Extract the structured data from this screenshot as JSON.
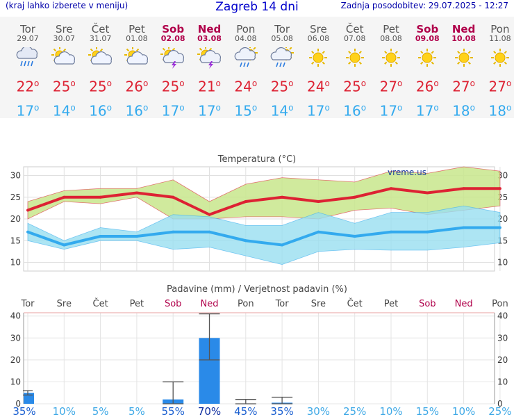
{
  "header": {
    "left_note": "(kraj lahko izberete v meniju)",
    "title": "Zagreb 14 dni",
    "updated": "Zadnja posodobitev: 29.07.2025 - 12:27"
  },
  "days": [
    {
      "name": "Tor",
      "date": "29.07",
      "weekend": false,
      "icon": "rain-cloud-icon",
      "tmax": "22",
      "tmin": "17"
    },
    {
      "name": "Sre",
      "date": "30.07",
      "weekend": false,
      "icon": "sun-cloud-icon",
      "tmax": "25",
      "tmin": "14"
    },
    {
      "name": "Čet",
      "date": "31.07",
      "weekend": false,
      "icon": "sun-cloud-icon",
      "tmax": "25",
      "tmin": "16"
    },
    {
      "name": "Pet",
      "date": "01.08",
      "weekend": false,
      "icon": "sun-cloud-icon",
      "tmax": "26",
      "tmin": "16"
    },
    {
      "name": "Sob",
      "date": "02.08",
      "weekend": true,
      "icon": "thunder-sun-icon",
      "tmax": "25",
      "tmin": "17"
    },
    {
      "name": "Ned",
      "date": "03.08",
      "weekend": true,
      "icon": "thunder-sun-icon",
      "tmax": "21",
      "tmin": "17"
    },
    {
      "name": "Pon",
      "date": "04.08",
      "weekend": false,
      "icon": "sun-rain-icon",
      "tmax": "24",
      "tmin": "15"
    },
    {
      "name": "Tor",
      "date": "05.08",
      "weekend": false,
      "icon": "sun-rain-icon",
      "tmax": "25",
      "tmin": "14"
    },
    {
      "name": "Sre",
      "date": "06.08",
      "weekend": false,
      "icon": "sun-icon",
      "tmax": "24",
      "tmin": "17"
    },
    {
      "name": "Čet",
      "date": "07.08",
      "weekend": false,
      "icon": "sun-icon",
      "tmax": "25",
      "tmin": "16"
    },
    {
      "name": "Pet",
      "date": "08.08",
      "weekend": false,
      "icon": "sun-icon",
      "tmax": "27",
      "tmin": "17"
    },
    {
      "name": "Sob",
      "date": "09.08",
      "weekend": true,
      "icon": "sun-icon",
      "tmax": "26",
      "tmin": "17"
    },
    {
      "name": "Ned",
      "date": "10.08",
      "weekend": true,
      "icon": "sun-icon",
      "tmax": "27",
      "tmin": "18"
    },
    {
      "name": "Pon",
      "date": "11.08",
      "weekend": false,
      "icon": "sun-icon",
      "tmax": "27",
      "tmin": "18"
    }
  ],
  "colors": {
    "tmax": "#dd2233",
    "tmin": "#33aaee",
    "weekend": "#b0004a",
    "max_band": "#c8e68c",
    "min_band": "#99dff0",
    "overlap": "#7fcf6f",
    "precip_bar": "#2a8ae8"
  },
  "chart_data": [
    {
      "type": "line",
      "title": "Temperatura (°C)",
      "watermark": "vreme.us",
      "categories": [
        "29.07",
        "30.07",
        "31.07",
        "01.08",
        "02.08",
        "03.08",
        "04.08",
        "05.08",
        "06.08",
        "07.08",
        "08.08",
        "09.08",
        "10.08",
        "11.08"
      ],
      "yticks": [
        10,
        15,
        20,
        25,
        30
      ],
      "ylim": [
        8,
        32
      ],
      "grid": true,
      "series": [
        {
          "key": "tmax",
          "values": [
            22,
            25,
            25,
            26,
            25,
            21,
            24,
            25,
            24,
            25,
            27,
            26,
            27,
            27
          ],
          "band_low": [
            20,
            24,
            23.5,
            25,
            20,
            20,
            20.5,
            20.5,
            20,
            22,
            22.5,
            21,
            22,
            23
          ],
          "band_high": [
            24,
            26.5,
            27,
            27,
            29,
            24,
            28,
            29.5,
            29,
            28.5,
            31,
            30.5,
            32,
            31
          ]
        },
        {
          "key": "tmin",
          "values": [
            17,
            14,
            16,
            16,
            17,
            17,
            15,
            14,
            17,
            16,
            17,
            17,
            18,
            18
          ],
          "band_low": [
            15,
            13,
            15,
            15,
            13,
            13.5,
            11.5,
            9.5,
            12.5,
            13,
            12.8,
            12.8,
            13.5,
            14.5
          ],
          "band_high": [
            19,
            15,
            18,
            17,
            21,
            20.5,
            18.5,
            18.5,
            21.5,
            19,
            21.5,
            21.5,
            23,
            21.5
          ]
        }
      ]
    },
    {
      "type": "bar",
      "title": "Padavine (mm) / Verjetnost padavin (%)",
      "categories": [
        "Tor",
        "Sre",
        "Čet",
        "Pet",
        "Sob",
        "Ned",
        "Pon",
        "Tor",
        "Sre",
        "Čet",
        "Pet",
        "Sob",
        "Ned",
        "Pon"
      ],
      "weekend": [
        false,
        false,
        false,
        false,
        true,
        true,
        false,
        false,
        false,
        false,
        false,
        true,
        true,
        false
      ],
      "values": [
        5,
        0,
        0,
        0,
        2,
        30,
        0,
        0.5,
        0,
        0,
        0,
        0,
        0,
        0
      ],
      "range_low": [
        4,
        null,
        null,
        null,
        0,
        20,
        0,
        0,
        null,
        null,
        null,
        null,
        null,
        null
      ],
      "range_high": [
        6,
        null,
        null,
        null,
        10,
        41,
        2,
        3,
        null,
        null,
        null,
        null,
        null,
        null
      ],
      "probability": [
        "35%",
        "10%",
        "5%",
        "5%",
        "55%",
        "70%",
        "45%",
        "35%",
        "30%",
        "25%",
        "10%",
        "15%",
        "10%",
        "25%"
      ],
      "probability_strength": [
        2,
        1,
        1,
        1,
        2,
        3,
        2,
        2,
        1,
        1,
        1,
        1,
        1,
        1
      ],
      "yticks": [
        0,
        10,
        20,
        30,
        40
      ],
      "ylim": [
        0,
        41.5
      ],
      "grid": true
    }
  ]
}
